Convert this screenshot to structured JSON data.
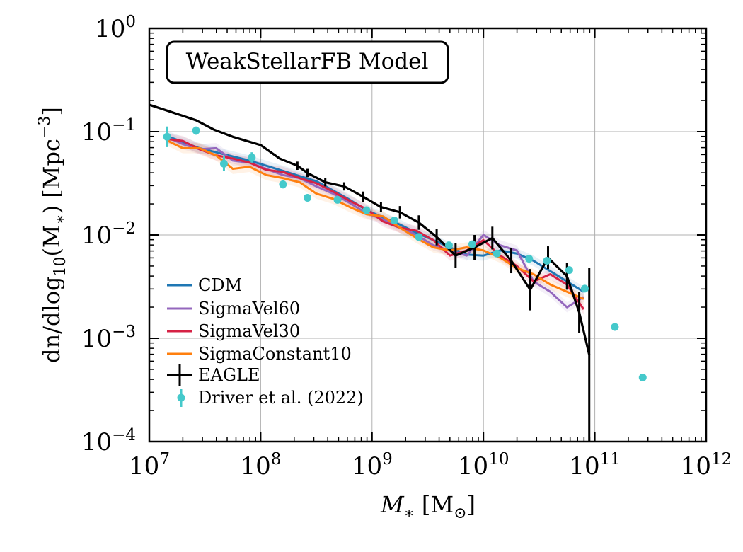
{
  "chart_data": {
    "type": "line",
    "title": "WeakStellarFB Model",
    "xlabel": "M_* [M_⊙]",
    "ylabel": "dn/dlog10(M*) [Mpc^-3]",
    "xscale": "log",
    "yscale": "log",
    "xlim_log10": [
      7,
      12
    ],
    "ylim_log10": [
      -4,
      0
    ],
    "x_ticks": [
      {
        "base": "10",
        "exp": "7"
      },
      {
        "base": "10",
        "exp": "8"
      },
      {
        "base": "10",
        "exp": "9"
      },
      {
        "base": "10",
        "exp": "10"
      },
      {
        "base": "10",
        "exp": "11"
      },
      {
        "base": "10",
        "exp": "12"
      }
    ],
    "y_ticks": [
      {
        "base": "10",
        "exp": "−4"
      },
      {
        "base": "10",
        "exp": "−3"
      },
      {
        "base": "10",
        "exp": "−2"
      },
      {
        "base": "10",
        "exp": "−1"
      },
      {
        "base": "10",
        "exp": "0"
      }
    ],
    "grid": true,
    "legend_position": "lower-left",
    "series": [
      {
        "name": "CDM",
        "color": "#1f77b4",
        "style": "line",
        "x_log10": [
          7.15,
          7.3,
          7.45,
          7.6,
          7.75,
          7.9,
          8.05,
          8.2,
          8.35,
          8.5,
          8.65,
          8.8,
          8.95,
          9.1,
          9.25,
          9.4,
          9.55,
          9.7,
          9.85,
          10.0,
          10.15,
          10.3,
          10.45,
          10.6,
          10.75,
          10.9
        ],
        "y_log10": [
          -1.04,
          -1.1,
          -1.16,
          -1.2,
          -1.24,
          -1.28,
          -1.33,
          -1.38,
          -1.43,
          -1.48,
          -1.57,
          -1.66,
          -1.76,
          -1.83,
          -1.9,
          -1.98,
          -2.05,
          -2.12,
          -2.19,
          -2.2,
          -2.15,
          -2.18,
          -2.25,
          -2.35,
          -2.45,
          -2.55
        ]
      },
      {
        "name": "SigmaVel60",
        "color": "#9467bd",
        "style": "line",
        "x_log10": [
          7.15,
          7.3,
          7.45,
          7.6,
          7.75,
          7.9,
          8.05,
          8.2,
          8.35,
          8.5,
          8.65,
          8.8,
          8.95,
          9.1,
          9.25,
          9.4,
          9.55,
          9.7,
          9.85,
          10.0,
          10.15,
          10.3,
          10.45,
          10.6,
          10.75,
          10.9
        ],
        "y_log10": [
          -1.05,
          -1.12,
          -1.17,
          -1.16,
          -1.28,
          -1.3,
          -1.36,
          -1.42,
          -1.45,
          -1.53,
          -1.6,
          -1.69,
          -1.79,
          -1.85,
          -1.93,
          -2.0,
          -2.1,
          -2.15,
          -2.2,
          -2.0,
          -2.1,
          -2.15,
          -2.45,
          -2.55,
          -2.7,
          -2.6
        ]
      },
      {
        "name": "SigmaVel30",
        "color": "#d62245",
        "style": "line",
        "x_log10": [
          7.15,
          7.3,
          7.45,
          7.6,
          7.75,
          7.9,
          8.05,
          8.2,
          8.35,
          8.5,
          8.65,
          8.8,
          8.95,
          9.1,
          9.25,
          9.4,
          9.55,
          9.7,
          9.85,
          10.0,
          10.15,
          10.3,
          10.45,
          10.6,
          10.75,
          10.9
        ],
        "y_log10": [
          -1.07,
          -1.09,
          -1.17,
          -1.23,
          -1.26,
          -1.3,
          -1.37,
          -1.39,
          -1.45,
          -1.5,
          -1.58,
          -1.67,
          -1.75,
          -1.87,
          -1.93,
          -1.96,
          -2.05,
          -2.2,
          -2.15,
          -2.05,
          -2.2,
          -2.3,
          -2.45,
          -2.38,
          -2.48,
          -2.72
        ]
      },
      {
        "name": "SigmaConstant10",
        "color": "#ff7f0e",
        "style": "line",
        "x_log10": [
          7.15,
          7.3,
          7.45,
          7.6,
          7.75,
          7.9,
          8.05,
          8.2,
          8.35,
          8.5,
          8.65,
          8.8,
          8.95,
          9.1,
          9.25,
          9.4,
          9.55,
          9.7,
          9.85,
          10.0,
          10.15,
          10.3,
          10.45,
          10.6,
          10.75,
          10.9
        ],
        "y_log10": [
          -1.08,
          -1.16,
          -1.16,
          -1.23,
          -1.36,
          -1.34,
          -1.42,
          -1.45,
          -1.49,
          -1.6,
          -1.65,
          -1.73,
          -1.8,
          -1.82,
          -1.93,
          -2.03,
          -2.12,
          -2.15,
          -2.12,
          -2.15,
          -2.22,
          -2.32,
          -2.38,
          -2.48,
          -2.55,
          -2.62
        ]
      },
      {
        "name": "EAGLE",
        "color": "#000000",
        "style": "line+errorbar",
        "x_log10": [
          7.0,
          7.17,
          7.42,
          7.58,
          7.75,
          8.0,
          8.17,
          8.33,
          8.42,
          8.58,
          8.75,
          8.92,
          9.08,
          9.25,
          9.42,
          9.58,
          9.75,
          9.92,
          10.08,
          10.25,
          10.42,
          10.58,
          10.75,
          10.86,
          10.95
        ],
        "y_log10": [
          -0.74,
          -0.8,
          -0.89,
          -0.98,
          -1.05,
          -1.13,
          -1.26,
          -1.33,
          -1.4,
          -1.49,
          -1.53,
          -1.63,
          -1.73,
          -1.78,
          -1.88,
          -2.02,
          -2.2,
          -2.12,
          -2.03,
          -2.25,
          -2.53,
          -2.22,
          -2.4,
          -2.75,
          -3.16
        ],
        "y_err_log10": [
          0.0,
          0.0,
          0.0,
          0.0,
          0.0,
          0.0,
          0.0,
          0.04,
          0.04,
          0.04,
          0.04,
          0.05,
          0.05,
          0.06,
          0.07,
          0.08,
          0.12,
          0.12,
          0.11,
          0.12,
          0.2,
          0.11,
          0.13,
          0.2,
          0.84
        ]
      },
      {
        "name": "Driver et al. (2022)",
        "color": "#45c9cb",
        "style": "errorbar-points",
        "x_log10": [
          7.16,
          7.42,
          7.67,
          7.92,
          8.2,
          8.42,
          8.69,
          8.95,
          9.2,
          9.42,
          9.69,
          9.9,
          10.12,
          10.41,
          10.57,
          10.77,
          10.91,
          11.18,
          11.43
        ],
        "y_log10": [
          -1.05,
          -0.99,
          -1.31,
          -1.25,
          -1.51,
          -1.64,
          -1.66,
          -1.76,
          -1.86,
          -2.02,
          -2.1,
          -2.09,
          -2.18,
          -2.23,
          -2.25,
          -2.34,
          -2.52,
          -2.89,
          -3.38
        ],
        "y_err_log10": [
          0.1,
          0.04,
          0.07,
          0.05,
          0.04,
          0.03,
          0.0,
          0.0,
          0.0,
          0.0,
          0.0,
          0.0,
          0.0,
          0.0,
          0.0,
          0.0,
          0.0,
          0.0,
          0.0
        ]
      }
    ]
  }
}
